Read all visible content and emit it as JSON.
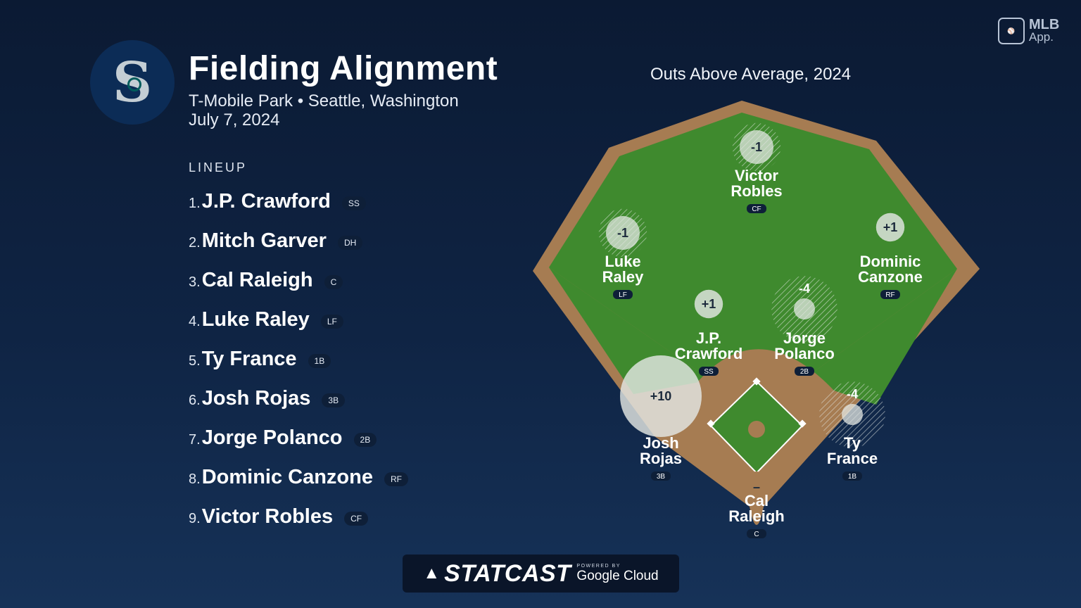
{
  "header": {
    "title": "Fielding Alignment",
    "venue": "T-Mobile Park • Seattle, Washington",
    "date": "July 7, 2024",
    "team_logo_glyph": "S"
  },
  "lineup": {
    "heading": "LINEUP",
    "players": [
      {
        "num": "1.",
        "name": "J.P. Crawford",
        "pos": "SS"
      },
      {
        "num": "2.",
        "name": "Mitch Garver",
        "pos": "DH"
      },
      {
        "num": "3.",
        "name": "Cal Raleigh",
        "pos": "C"
      },
      {
        "num": "4.",
        "name": "Luke Raley",
        "pos": "LF"
      },
      {
        "num": "5.",
        "name": "Ty France",
        "pos": "1B"
      },
      {
        "num": "6.",
        "name": "Josh Rojas",
        "pos": "3B"
      },
      {
        "num": "7.",
        "name": "Jorge Polanco",
        "pos": "2B"
      },
      {
        "num": "8.",
        "name": "Dominic Canzone",
        "pos": "RF"
      },
      {
        "num": "9.",
        "name": "Victor Robles",
        "pos": "CF"
      }
    ]
  },
  "field": {
    "title": "Outs Above Average, 2024",
    "colors": {
      "grass": "#3f8a2e",
      "dirt": "#a67c52",
      "bubble": "#e3e7e3"
    },
    "fielders": [
      {
        "id": "cf",
        "oaa": "-1",
        "oaa_value": -1,
        "line1": "Victor",
        "line2": "Robles",
        "pos": "CF"
      },
      {
        "id": "lf",
        "oaa": "-1",
        "oaa_value": -1,
        "line1": "Luke",
        "line2": "Raley",
        "pos": "LF"
      },
      {
        "id": "rf",
        "oaa": "+1",
        "oaa_value": 1,
        "line1": "Dominic",
        "line2": "Canzone",
        "pos": "RF"
      },
      {
        "id": "ss",
        "oaa": "+1",
        "oaa_value": 1,
        "line1": "J.P.",
        "line2": "Crawford",
        "pos": "SS"
      },
      {
        "id": "2b",
        "oaa": "-4",
        "oaa_value": -4,
        "line1": "Jorge",
        "line2": "Polanco",
        "pos": "2B"
      },
      {
        "id": "3b",
        "oaa": "+10",
        "oaa_value": 10,
        "line1": "Josh",
        "line2": "Rojas",
        "pos": "3B"
      },
      {
        "id": "1b",
        "oaa": "-4",
        "oaa_value": -4,
        "line1": "Ty",
        "line2": "France",
        "pos": "1B"
      },
      {
        "id": "c",
        "oaa": "–",
        "oaa_value": null,
        "line1": "Cal",
        "line2": "Raleigh",
        "pos": "C"
      }
    ]
  },
  "branding": {
    "mlb_app_line1": "MLB",
    "mlb_app_line2": "App.",
    "statcast_word": "STATCAST",
    "powered_by": "POWERED BY",
    "google_cloud": "Google Cloud"
  }
}
